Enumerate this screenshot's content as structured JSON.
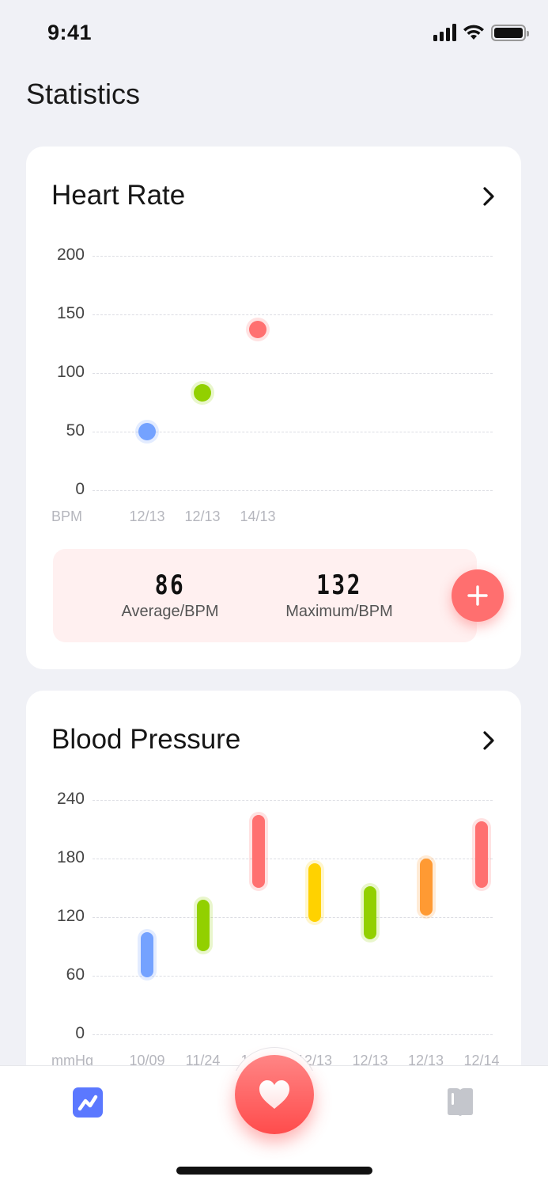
{
  "status_bar": {
    "time": "9:41"
  },
  "page": {
    "title": "Statistics"
  },
  "heart_rate": {
    "title": "Heart Rate",
    "summary": {
      "average_value": "86",
      "average_label": "Average/BPM",
      "maximum_value": "132",
      "maximum_label": "Maximum/BPM"
    },
    "add_button_icon": "plus-icon"
  },
  "blood_pressure": {
    "title": "Blood Pressure"
  },
  "tabbar": {
    "items": [
      {
        "name": "statistics",
        "icon": "chart-line-icon",
        "active": true,
        "color": "#5b78ff"
      },
      {
        "name": "measure",
        "icon": "heart-icon",
        "color": "#ff5c5c"
      },
      {
        "name": "journal",
        "icon": "book-icon",
        "active": false,
        "color": "#c4c6cc"
      }
    ]
  },
  "colors": {
    "background": "#f0f1f6",
    "card": "#ffffff",
    "accent_red": "#ff6f6f",
    "summary_bg": "#fff0f0",
    "blue": "#74a2ff",
    "green": "#92d000",
    "yellow": "#ffd200",
    "orange": "#ff9a33"
  },
  "chart_data": [
    {
      "type": "scatter",
      "title": "Heart Rate",
      "xlabel": "",
      "ylabel": "BPM",
      "y_unit_label": "BPM",
      "yticks": [
        "200",
        "150",
        "100",
        "50",
        "0"
      ],
      "ylim": [
        0,
        200
      ],
      "grid": true,
      "categories": [
        "12/13",
        "12/13",
        "14/13"
      ],
      "values": [
        50,
        83,
        137
      ],
      "point_colors": [
        "#74a2ff",
        "#92d000",
        "#ff7070"
      ]
    },
    {
      "type": "bar",
      "subtype": "range",
      "title": "Blood Pressure",
      "xlabel": "",
      "ylabel": "mmHg",
      "y_unit_label": "mmHg",
      "yticks": [
        "240",
        "180",
        "120",
        "60",
        "0"
      ],
      "ylim": [
        0,
        240
      ],
      "grid": true,
      "categories": [
        "10/09",
        "11/24",
        "12/13",
        "12/13",
        "12/13",
        "12/13",
        "12/14"
      ],
      "series": [
        {
          "name": "low",
          "values": [
            58,
            85,
            150,
            115,
            97,
            122,
            150
          ]
        },
        {
          "name": "high",
          "values": [
            105,
            138,
            225,
            175,
            152,
            180,
            218
          ]
        }
      ],
      "bar_colors": [
        "#74a2ff",
        "#92d000",
        "#ff7070",
        "#ffd200",
        "#92d000",
        "#ff9a33",
        "#ff7070"
      ]
    }
  ]
}
